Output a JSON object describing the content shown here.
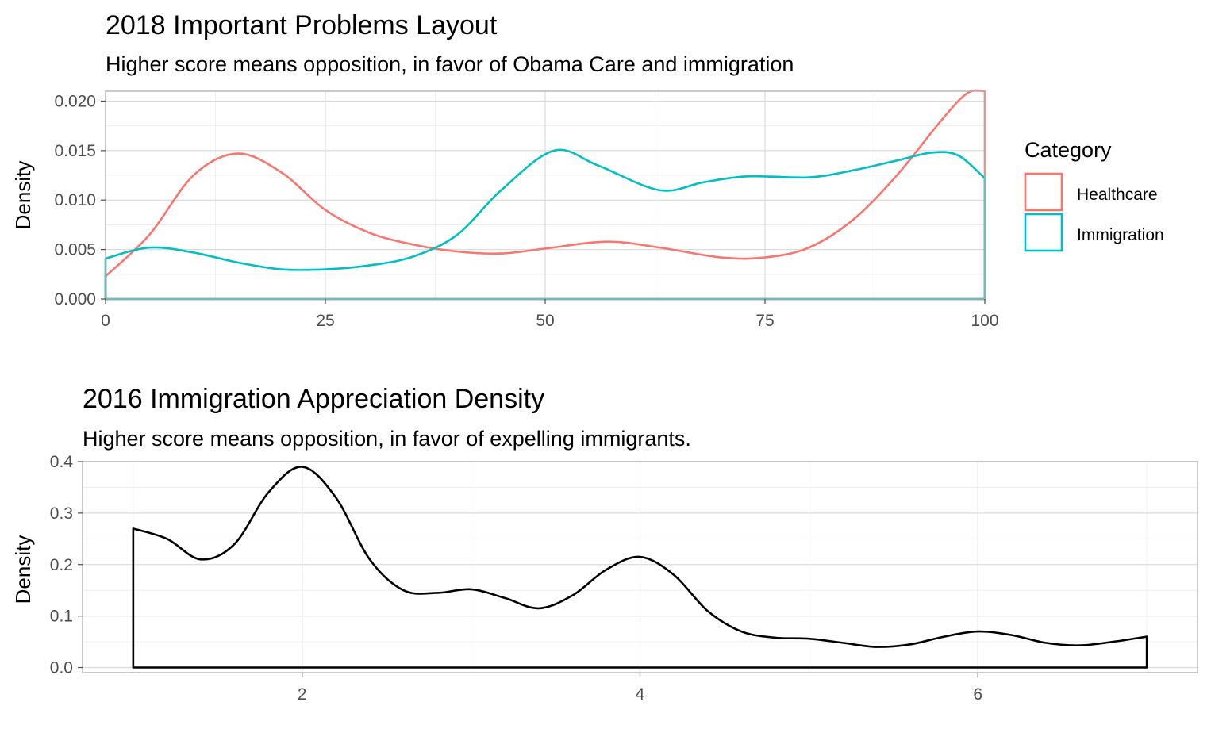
{
  "chart_data": [
    {
      "type": "area",
      "title": "2018 Important Problems Layout",
      "subtitle": "Higher score means opposition, in favor of Obama Care and immigration",
      "xlabel": "",
      "ylabel": "Density",
      "xlim": [
        0,
        100
      ],
      "ylim": [
        0,
        0.021
      ],
      "xticks": [
        0,
        25,
        50,
        75,
        100
      ],
      "xtick_labels": [
        "0",
        "25",
        "50",
        "75",
        "100"
      ],
      "yticks": [
        0,
        0.005,
        0.01,
        0.015,
        0.02
      ],
      "ytick_labels": [
        "0.000",
        "0.005",
        "0.010",
        "0.015",
        "0.020"
      ],
      "grid": true,
      "legend": {
        "title": "Category",
        "position": "right"
      },
      "series": [
        {
          "name": "Healthcare",
          "color": "#F8766D",
          "x": [
            0,
            5,
            10,
            15,
            20,
            25,
            30,
            35,
            40,
            45,
            50,
            57,
            63,
            70,
            75,
            80,
            85,
            90,
            95,
            98,
            100
          ],
          "y": [
            0.0023,
            0.0065,
            0.0125,
            0.0147,
            0.0128,
            0.009,
            0.0067,
            0.0055,
            0.0048,
            0.0046,
            0.0051,
            0.0058,
            0.0052,
            0.0042,
            0.0042,
            0.0052,
            0.008,
            0.0125,
            0.018,
            0.0208,
            0.021
          ]
        },
        {
          "name": "Immigration",
          "color": "#00BFC4",
          "x": [
            0,
            5,
            10,
            15,
            20,
            25,
            30,
            35,
            40,
            45,
            51,
            56,
            63,
            68,
            73,
            80,
            85,
            90,
            94,
            97,
            100
          ],
          "y": [
            0.0041,
            0.0052,
            0.0047,
            0.0037,
            0.003,
            0.003,
            0.0034,
            0.0043,
            0.0065,
            0.011,
            0.015,
            0.0135,
            0.011,
            0.0118,
            0.0124,
            0.0123,
            0.013,
            0.014,
            0.0148,
            0.0145,
            0.0122
          ]
        }
      ]
    },
    {
      "type": "area",
      "title": "2016 Immigration Appreciation Density",
      "subtitle": "Higher score means opposition, in favor of expelling immigrants.",
      "xlabel": "",
      "ylabel": "Density",
      "xlim": [
        0.7,
        7.3
      ],
      "ylim": [
        -0.01,
        0.4
      ],
      "xticks": [
        2,
        4,
        6
      ],
      "xtick_labels": [
        "2",
        "4",
        "6"
      ],
      "yticks": [
        0,
        0.1,
        0.2,
        0.3,
        0.4
      ],
      "ytick_labels": [
        "0.0",
        "0.1",
        "0.2",
        "0.3",
        "0.4"
      ],
      "grid": true,
      "series": [
        {
          "color": "#000000",
          "x": [
            1,
            1.2,
            1.4,
            1.6,
            1.8,
            2,
            2.2,
            2.4,
            2.6,
            2.8,
            3,
            3.2,
            3.4,
            3.6,
            3.8,
            4,
            4.2,
            4.4,
            4.6,
            4.8,
            5,
            5.2,
            5.4,
            5.6,
            5.8,
            6,
            6.2,
            6.4,
            6.6,
            6.8,
            7
          ],
          "y": [
            0.27,
            0.25,
            0.21,
            0.24,
            0.34,
            0.39,
            0.33,
            0.21,
            0.15,
            0.145,
            0.152,
            0.135,
            0.115,
            0.14,
            0.19,
            0.215,
            0.18,
            0.11,
            0.07,
            0.058,
            0.056,
            0.048,
            0.04,
            0.045,
            0.06,
            0.07,
            0.063,
            0.048,
            0.043,
            0.05,
            0.06
          ]
        }
      ]
    }
  ]
}
